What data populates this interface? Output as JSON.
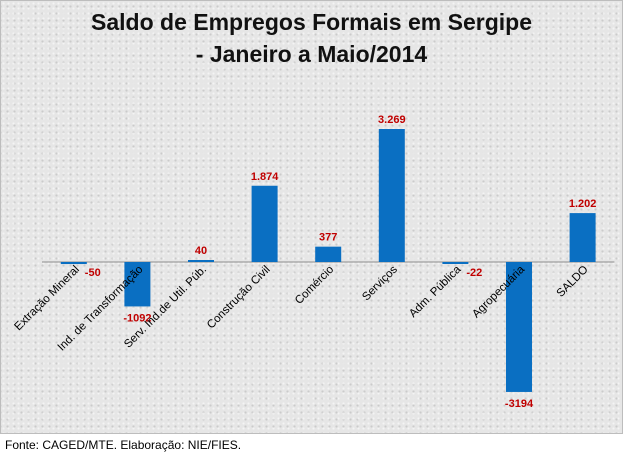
{
  "chart_data": {
    "type": "bar",
    "title": "Saldo de Empregos Formais em Sergipe",
    "subtitle": "- Janeiro a Maio/2014",
    "categories": [
      "Extração Mineral",
      "Ind. de Transformação",
      "Serv. Ind.de Util. Púb.",
      "Construção Civil",
      "Comércio",
      "Serviços",
      "Adm. Pública",
      "Agropecuária",
      "SALDO"
    ],
    "values": [
      -50,
      -1092,
      40,
      1874,
      377,
      3269,
      -22,
      -3194,
      1202
    ],
    "data_labels": [
      "-50",
      "-1092",
      "40",
      "1.874",
      "377",
      "3.269",
      "-22",
      "-3194",
      "1.202"
    ],
    "xlabel": "",
    "ylabel": "",
    "ylim": [
      -3300,
      3300
    ],
    "legend": "none",
    "bar_color": "#0a6fc2",
    "label_color": "#c00000"
  },
  "footer": {
    "source": "Fonte: CAGED/MTE. Elaboração: NIE/FIES."
  }
}
